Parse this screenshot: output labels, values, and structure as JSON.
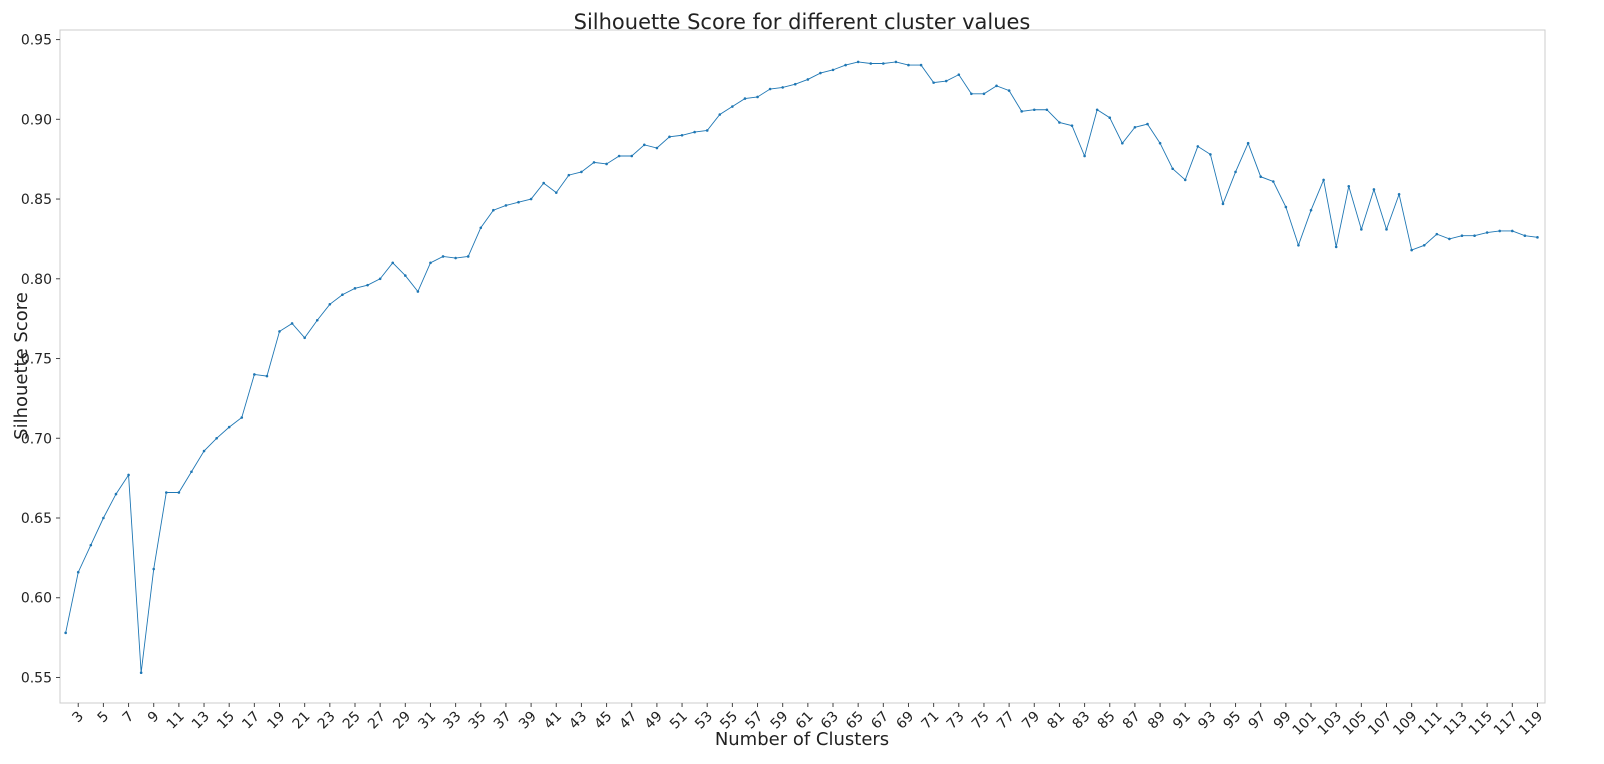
{
  "chart_data": {
    "type": "line",
    "title": "Silhouette Score for different cluster values",
    "x_label": "Number of Clusters",
    "y_label": "Silhouette Score",
    "x": [
      2,
      3,
      4,
      5,
      6,
      7,
      8,
      9,
      10,
      11,
      12,
      13,
      14,
      15,
      16,
      17,
      18,
      19,
      20,
      21,
      22,
      23,
      24,
      25,
      26,
      27,
      28,
      29,
      30,
      31,
      32,
      33,
      34,
      35,
      36,
      37,
      38,
      39,
      40,
      41,
      42,
      43,
      44,
      45,
      46,
      47,
      48,
      49,
      50,
      51,
      52,
      53,
      54,
      55,
      56,
      57,
      58,
      59,
      60,
      61,
      62,
      63,
      64,
      65,
      66,
      67,
      68,
      69,
      70,
      71,
      72,
      73,
      74,
      75,
      76,
      77,
      78,
      79,
      80,
      81,
      82,
      83,
      84,
      85,
      86,
      87,
      88,
      89,
      90,
      91,
      92,
      93,
      94,
      95,
      96,
      97,
      98,
      99,
      100,
      101,
      102,
      103,
      104,
      105,
      106,
      107,
      108,
      109,
      110,
      111,
      112,
      113,
      114,
      115,
      116,
      117,
      118,
      119
    ],
    "series": [
      {
        "name": "Silhouette Score",
        "color": "#1f77b4",
        "values": [
          0.578,
          0.616,
          0.633,
          0.65,
          0.665,
          0.677,
          0.553,
          0.618,
          0.666,
          0.666,
          0.679,
          0.692,
          0.7,
          0.707,
          0.713,
          0.74,
          0.739,
          0.767,
          0.772,
          0.763,
          0.774,
          0.784,
          0.79,
          0.794,
          0.796,
          0.8,
          0.81,
          0.802,
          0.792,
          0.81,
          0.814,
          0.813,
          0.814,
          0.832,
          0.843,
          0.846,
          0.848,
          0.85,
          0.86,
          0.854,
          0.865,
          0.867,
          0.873,
          0.872,
          0.877,
          0.877,
          0.884,
          0.882,
          0.889,
          0.89,
          0.892,
          0.893,
          0.903,
          0.908,
          0.913,
          0.914,
          0.919,
          0.92,
          0.922,
          0.925,
          0.929,
          0.931,
          0.934,
          0.936,
          0.935,
          0.935,
          0.936,
          0.934,
          0.934,
          0.923,
          0.924,
          0.928,
          0.916,
          0.916,
          0.921,
          0.918,
          0.905,
          0.906,
          0.906,
          0.898,
          0.896,
          0.877,
          0.906,
          0.901,
          0.885,
          0.895,
          0.897,
          0.885,
          0.869,
          0.862,
          0.883,
          0.878,
          0.847,
          0.867,
          0.885,
          0.864,
          0.861,
          0.845,
          0.821,
          0.843,
          0.862,
          0.82,
          0.858,
          0.831,
          0.856,
          0.831,
          0.853,
          0.818,
          0.821,
          0.828,
          0.825,
          0.827,
          0.827,
          0.829,
          0.83,
          0.83,
          0.827,
          0.826
        ]
      }
    ],
    "xlim": [
      1.55,
      119.6
    ],
    "ylim": [
      0.534,
      0.956
    ],
    "xticks": [
      3,
      5,
      7,
      9,
      11,
      13,
      15,
      17,
      19,
      21,
      23,
      25,
      27,
      29,
      31,
      33,
      35,
      37,
      39,
      41,
      43,
      45,
      47,
      49,
      51,
      53,
      55,
      57,
      59,
      61,
      63,
      65,
      67,
      69,
      71,
      73,
      75,
      77,
      79,
      81,
      83,
      85,
      87,
      89,
      91,
      93,
      95,
      97,
      99,
      101,
      103,
      105,
      107,
      109,
      111,
      113,
      115,
      117,
      119
    ],
    "yticks": [
      0.55,
      {
        "value": 0.6,
        "label": "0.60"
      },
      0.65,
      {
        "value": 0.7,
        "label": "0.70"
      },
      0.75,
      {
        "value": 0.8,
        "label": "0.80"
      },
      0.85,
      {
        "value": 0.9,
        "label": "0.90"
      },
      0.95
    ]
  }
}
